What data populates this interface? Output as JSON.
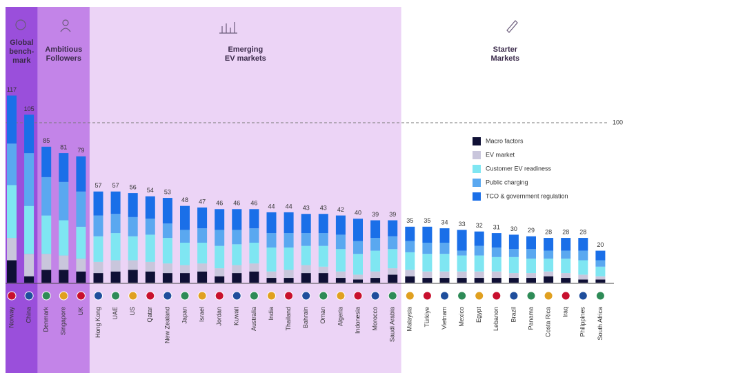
{
  "chart_data": {
    "type": "stacked-bar",
    "groups": [
      {
        "label": [
          "Global",
          "bench-",
          "mark"
        ],
        "color": "#9a4fdb",
        "categories": [
          "Norway",
          "China"
        ]
      },
      {
        "label": [
          "Ambitious",
          "Followers"
        ],
        "color": "#c384e8",
        "categories": [
          "Denmark",
          "Singapore",
          "UK"
        ]
      },
      {
        "label": [
          "Emerging",
          "EV markets"
        ],
        "color": "#ecd4f6",
        "categories": [
          "Hong Kong",
          "UAE",
          "US",
          "Qatar",
          "New Zealand",
          "Japan",
          "Israel",
          "Jordan",
          "Kuwait",
          "Australia",
          "India",
          "Thailand",
          "Bahrain",
          "Oman",
          "Algeria",
          "Indonesia",
          "Morocco",
          "Saudi Arabia"
        ]
      },
      {
        "label": [
          "Starter",
          "Markets"
        ],
        "color": "#ffffff",
        "categories": [
          "Malaysia",
          "Türkiye",
          "Vietnam",
          "Mexico",
          "Egypt",
          "Lebanon",
          "Brazil",
          "Panama",
          "Costa Rica",
          "Iraq",
          "Philippines",
          "South Africa"
        ]
      }
    ],
    "totals": [
      117,
      105,
      85,
      81,
      79,
      57,
      57,
      56,
      54,
      53,
      48,
      47,
      46,
      46,
      46,
      44,
      44,
      43,
      43,
      42,
      40,
      39,
      39,
      35,
      35,
      34,
      33,
      32,
      31,
      30,
      29,
      28,
      28,
      28,
      20
    ],
    "series": [
      {
        "name": "Macro factors",
        "color": "#0f1035",
        "values": [
          14,
          4,
          8,
          8,
          7,
          6,
          7,
          8,
          7,
          6,
          6,
          7,
          4,
          6,
          7,
          3,
          3,
          6,
          6,
          3,
          2,
          3,
          5,
          4,
          3,
          3,
          3,
          3,
          3,
          3,
          3,
          4,
          3,
          2,
          2
        ]
      },
      {
        "name": "EV market",
        "color": "#c9c6dc",
        "values": [
          14,
          14,
          10,
          9,
          8,
          7,
          7,
          6,
          6,
          6,
          5,
          5,
          5,
          5,
          5,
          4,
          5,
          5,
          4,
          4,
          3,
          4,
          4,
          4,
          4,
          4,
          4,
          4,
          4,
          3,
          3,
          3,
          3,
          3,
          2
        ]
      },
      {
        "name": "Customer EV readiness",
        "color": "#7fe6f2",
        "values": [
          33,
          30,
          24,
          22,
          20,
          16,
          17,
          15,
          17,
          16,
          14,
          13,
          14,
          13,
          13,
          15,
          14,
          12,
          13,
          14,
          13,
          13,
          12,
          11,
          11,
          11,
          10,
          10,
          9,
          10,
          9,
          8,
          9,
          9,
          6
        ]
      },
      {
        "name": "Public charging",
        "color": "#5aa8f0",
        "values": [
          26,
          33,
          24,
          24,
          22,
          13,
          12,
          12,
          10,
          9,
          8,
          9,
          10,
          9,
          9,
          9,
          9,
          8,
          8,
          9,
          8,
          8,
          8,
          7,
          7,
          7,
          3,
          6,
          6,
          5,
          6,
          5,
          5,
          6,
          4
        ]
      },
      {
        "name": "TCO & government regulation",
        "color": "#1a6fe8",
        "values": [
          30,
          24,
          19,
          18,
          22,
          15,
          14,
          15,
          14,
          16,
          15,
          13,
          13,
          13,
          12,
          13,
          13,
          12,
          12,
          12,
          14,
          11,
          10,
          9,
          10,
          9,
          13,
          9,
          9,
          9,
          8,
          8,
          8,
          8,
          6
        ]
      }
    ],
    "reference_line": 100,
    "ylim": [
      0,
      125
    ]
  }
}
